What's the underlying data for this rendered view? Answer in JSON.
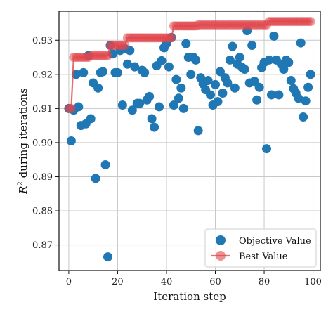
{
  "chart_data": {
    "type": "scatter",
    "xlabel": "Iteration step",
    "ylabel_base": "R",
    "ylabel_sup": "2",
    "ylabel_rest": " during iterations",
    "xlim": [
      -4,
      103
    ],
    "ylim": [
      0.8625,
      0.9385
    ],
    "xticks": [
      0,
      20,
      40,
      60,
      80,
      100
    ],
    "yticks": [
      0.87,
      0.88,
      0.89,
      0.9,
      0.91,
      0.92,
      0.93
    ],
    "ytick_labels": [
      "0.87",
      "0.88",
      "0.89",
      "0.90",
      "0.91",
      "0.92",
      "0.93"
    ],
    "grid": true,
    "legend_position": "lower-right",
    "series": [
      {
        "name": "Objective Value",
        "marker": "circle",
        "color": "#1f77b4",
        "x": [
          0,
          1,
          2,
          3,
          4,
          5,
          6,
          7,
          8,
          9,
          10,
          11,
          12,
          13,
          14,
          15,
          16,
          17,
          18,
          19,
          20,
          21,
          22,
          23,
          24,
          25,
          26,
          27,
          28,
          29,
          30,
          31,
          32,
          33,
          34,
          35,
          36,
          37,
          38,
          39,
          40,
          41,
          42,
          43,
          44,
          45,
          46,
          47,
          48,
          49,
          50,
          51,
          52,
          53,
          54,
          55,
          56,
          57,
          58,
          59,
          60,
          61,
          62,
          63,
          64,
          65,
          66,
          67,
          68,
          69,
          70,
          71,
          72,
          73,
          74,
          75,
          76,
          77,
          78,
          79,
          80,
          81,
          82,
          83,
          84,
          85,
          86,
          87,
          88,
          89,
          90,
          91,
          92,
          93,
          94,
          95,
          96,
          97,
          98,
          99
        ],
        "y": [
          0.91,
          0.9005,
          0.9095,
          0.92,
          0.9105,
          0.905,
          0.9205,
          0.9055,
          0.9255,
          0.907,
          0.9175,
          0.8895,
          0.916,
          0.9205,
          0.9208,
          0.8935,
          0.8665,
          0.9285,
          0.926,
          0.9205,
          0.9205,
          0.927,
          0.911,
          0.9275,
          0.923,
          0.927,
          0.9095,
          0.9222,
          0.9115,
          0.9115,
          0.9212,
          0.9205,
          0.9125,
          0.9135,
          0.907,
          0.9045,
          0.9225,
          0.9105,
          0.924,
          0.9278,
          0.929,
          0.9222,
          0.9308,
          0.911,
          0.9185,
          0.913,
          0.916,
          0.91,
          0.929,
          0.925,
          0.92,
          0.925,
          0.9242,
          0.9035,
          0.919,
          0.9172,
          0.9155,
          0.9182,
          0.914,
          0.911,
          0.917,
          0.912,
          0.9208,
          0.9145,
          0.919,
          0.9175,
          0.9242,
          0.9282,
          0.916,
          0.923,
          0.925,
          0.922,
          0.9215,
          0.9328,
          0.9175,
          0.9285,
          0.918,
          0.9125,
          0.9162,
          0.922,
          0.9235,
          0.8982,
          0.9242,
          0.914,
          0.9312,
          0.9242,
          0.914,
          0.923,
          0.9215,
          0.9242,
          0.9235,
          0.9182,
          0.9158,
          0.9145,
          0.913,
          0.9292,
          0.9075,
          0.9122,
          0.9162,
          0.92
        ]
      },
      {
        "name": "Best Value",
        "marker": "circle",
        "color": "#e0474c",
        "x": [
          0,
          1,
          2,
          3,
          4,
          5,
          6,
          7,
          8,
          9,
          10,
          11,
          12,
          13,
          14,
          15,
          16,
          17,
          18,
          19,
          20,
          21,
          22,
          23,
          24,
          25,
          26,
          27,
          28,
          29,
          30,
          31,
          32,
          33,
          34,
          35,
          36,
          37,
          38,
          39,
          40,
          41,
          42,
          43,
          44,
          45,
          46,
          47,
          48,
          49,
          50,
          51,
          52,
          53,
          54,
          55,
          56,
          57,
          58,
          59,
          60,
          61,
          62,
          63,
          64,
          65,
          66,
          67,
          68,
          69,
          70,
          71,
          72,
          73,
          74,
          75,
          76,
          77,
          78,
          79,
          80,
          81,
          82,
          83,
          84,
          85,
          86,
          87,
          88,
          89,
          90,
          91,
          92,
          93,
          94,
          95,
          96,
          97,
          98,
          99
        ],
        "y": [
          0.91,
          0.91,
          0.925,
          0.925,
          0.925,
          0.925,
          0.925,
          0.925,
          0.925,
          0.9255,
          0.9255,
          0.9255,
          0.9255,
          0.9255,
          0.9255,
          0.9255,
          0.9255,
          0.9285,
          0.9285,
          0.9285,
          0.9285,
          0.9285,
          0.9285,
          0.9285,
          0.9307,
          0.9307,
          0.9307,
          0.9307,
          0.9307,
          0.9307,
          0.9307,
          0.9307,
          0.9307,
          0.9307,
          0.9307,
          0.9307,
          0.9307,
          0.9307,
          0.9307,
          0.9307,
          0.9307,
          0.9307,
          0.9307,
          0.9342,
          0.9342,
          0.9342,
          0.9342,
          0.9342,
          0.9342,
          0.9342,
          0.9342,
          0.9342,
          0.9342,
          0.9345,
          0.9345,
          0.9345,
          0.9345,
          0.9345,
          0.9345,
          0.9345,
          0.9345,
          0.9345,
          0.9345,
          0.9345,
          0.9345,
          0.9345,
          0.9345,
          0.9345,
          0.9345,
          0.9345,
          0.9345,
          0.9345,
          0.9345,
          0.9345,
          0.9345,
          0.9345,
          0.9345,
          0.9345,
          0.9345,
          0.9345,
          0.9345,
          0.9345,
          0.9355,
          0.9355,
          0.9355,
          0.9355,
          0.9355,
          0.9355,
          0.9355,
          0.9355,
          0.9355,
          0.9355,
          0.9355,
          0.9355,
          0.9355,
          0.9355,
          0.9355,
          0.9355,
          0.9355,
          0.9355
        ]
      }
    ]
  }
}
